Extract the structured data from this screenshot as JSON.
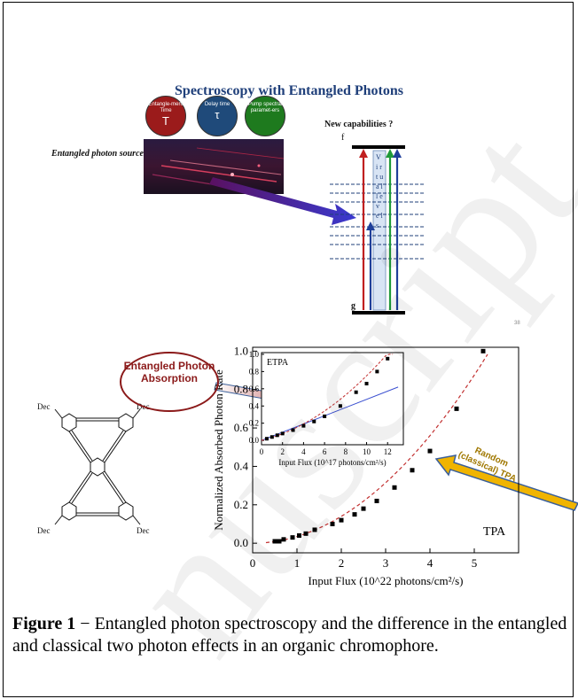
{
  "page_title": "Spectroscopy with Entangled Photons",
  "circles": [
    {
      "label": "Entangle-ment Time",
      "symbol": "T",
      "color": "#9b1b1b"
    },
    {
      "label": "Delay time",
      "symbol": "τ",
      "color": "#1f4a7a"
    },
    {
      "label": "Pump spectral paramet-ers",
      "symbol": "",
      "color": "#1e7a1e"
    }
  ],
  "source_label": "Entangled photon source",
  "new_capabilities": "New capabilities ?",
  "level_f": "f",
  "level_g": "g",
  "virtual_label": "V i r t u a l   l e v e l s",
  "slide_number": "38",
  "entangled_bubble": "Entangled Photon Absorption",
  "random_label": "Random (classical) TPA",
  "molecule_labels": [
    "Dec",
    "Dec",
    "Dec",
    "Dec"
  ],
  "caption_bold": "Figure 1",
  "caption_text": " − Entangled photon spectroscopy and the difference in the entangled and classical two photon effects in an organic chromophore.",
  "colors": {
    "title": "#1f3f7a",
    "bubble": "#8b1a1a",
    "arrow_yellow": "#f0b400",
    "fit": "#c23030",
    "etpa_line": "#3a4fd0"
  },
  "chart_data": [
    {
      "type": "scatter",
      "title": "",
      "series_label": "TPA",
      "xlabel": "Input Flux (10^22 photons/cm²/s)",
      "ylabel": "Normalized Absorbed Photon Rate",
      "xlim": [
        0,
        6
      ],
      "ylim": [
        -0.05,
        1.02
      ],
      "xticks": [
        0,
        1,
        2,
        3,
        4,
        5
      ],
      "yticks": [
        0.0,
        0.2,
        0.4,
        0.6,
        0.8,
        1.0
      ],
      "x": [
        0.5,
        0.6,
        0.7,
        0.9,
        1.05,
        1.2,
        1.4,
        1.8,
        2.0,
        2.3,
        2.5,
        2.8,
        3.2,
        3.6,
        4.0,
        4.6,
        5.2
      ],
      "y": [
        0.01,
        0.01,
        0.02,
        0.03,
        0.04,
        0.05,
        0.07,
        0.1,
        0.12,
        0.15,
        0.18,
        0.22,
        0.29,
        0.38,
        0.48,
        0.7,
        1.0
      ]
    },
    {
      "type": "scatter",
      "title": "",
      "series_label": "ETPA",
      "xlabel": "Input Flux (10^17 photons/cm²/s)",
      "xlim": [
        0,
        13.5
      ],
      "ylim": [
        -0.05,
        1.02
      ],
      "xticks": [
        0,
        2,
        4,
        6,
        8,
        10,
        12
      ],
      "yticks": [
        0.0,
        0.2,
        0.4,
        0.6,
        0.8,
        1.0
      ],
      "x": [
        0.5,
        1,
        1.5,
        2,
        3,
        4,
        5,
        6,
        7.5,
        9,
        10,
        11,
        12
      ],
      "y": [
        0.02,
        0.04,
        0.06,
        0.08,
        0.12,
        0.17,
        0.22,
        0.28,
        0.4,
        0.56,
        0.66,
        0.8,
        0.95
      ]
    }
  ]
}
